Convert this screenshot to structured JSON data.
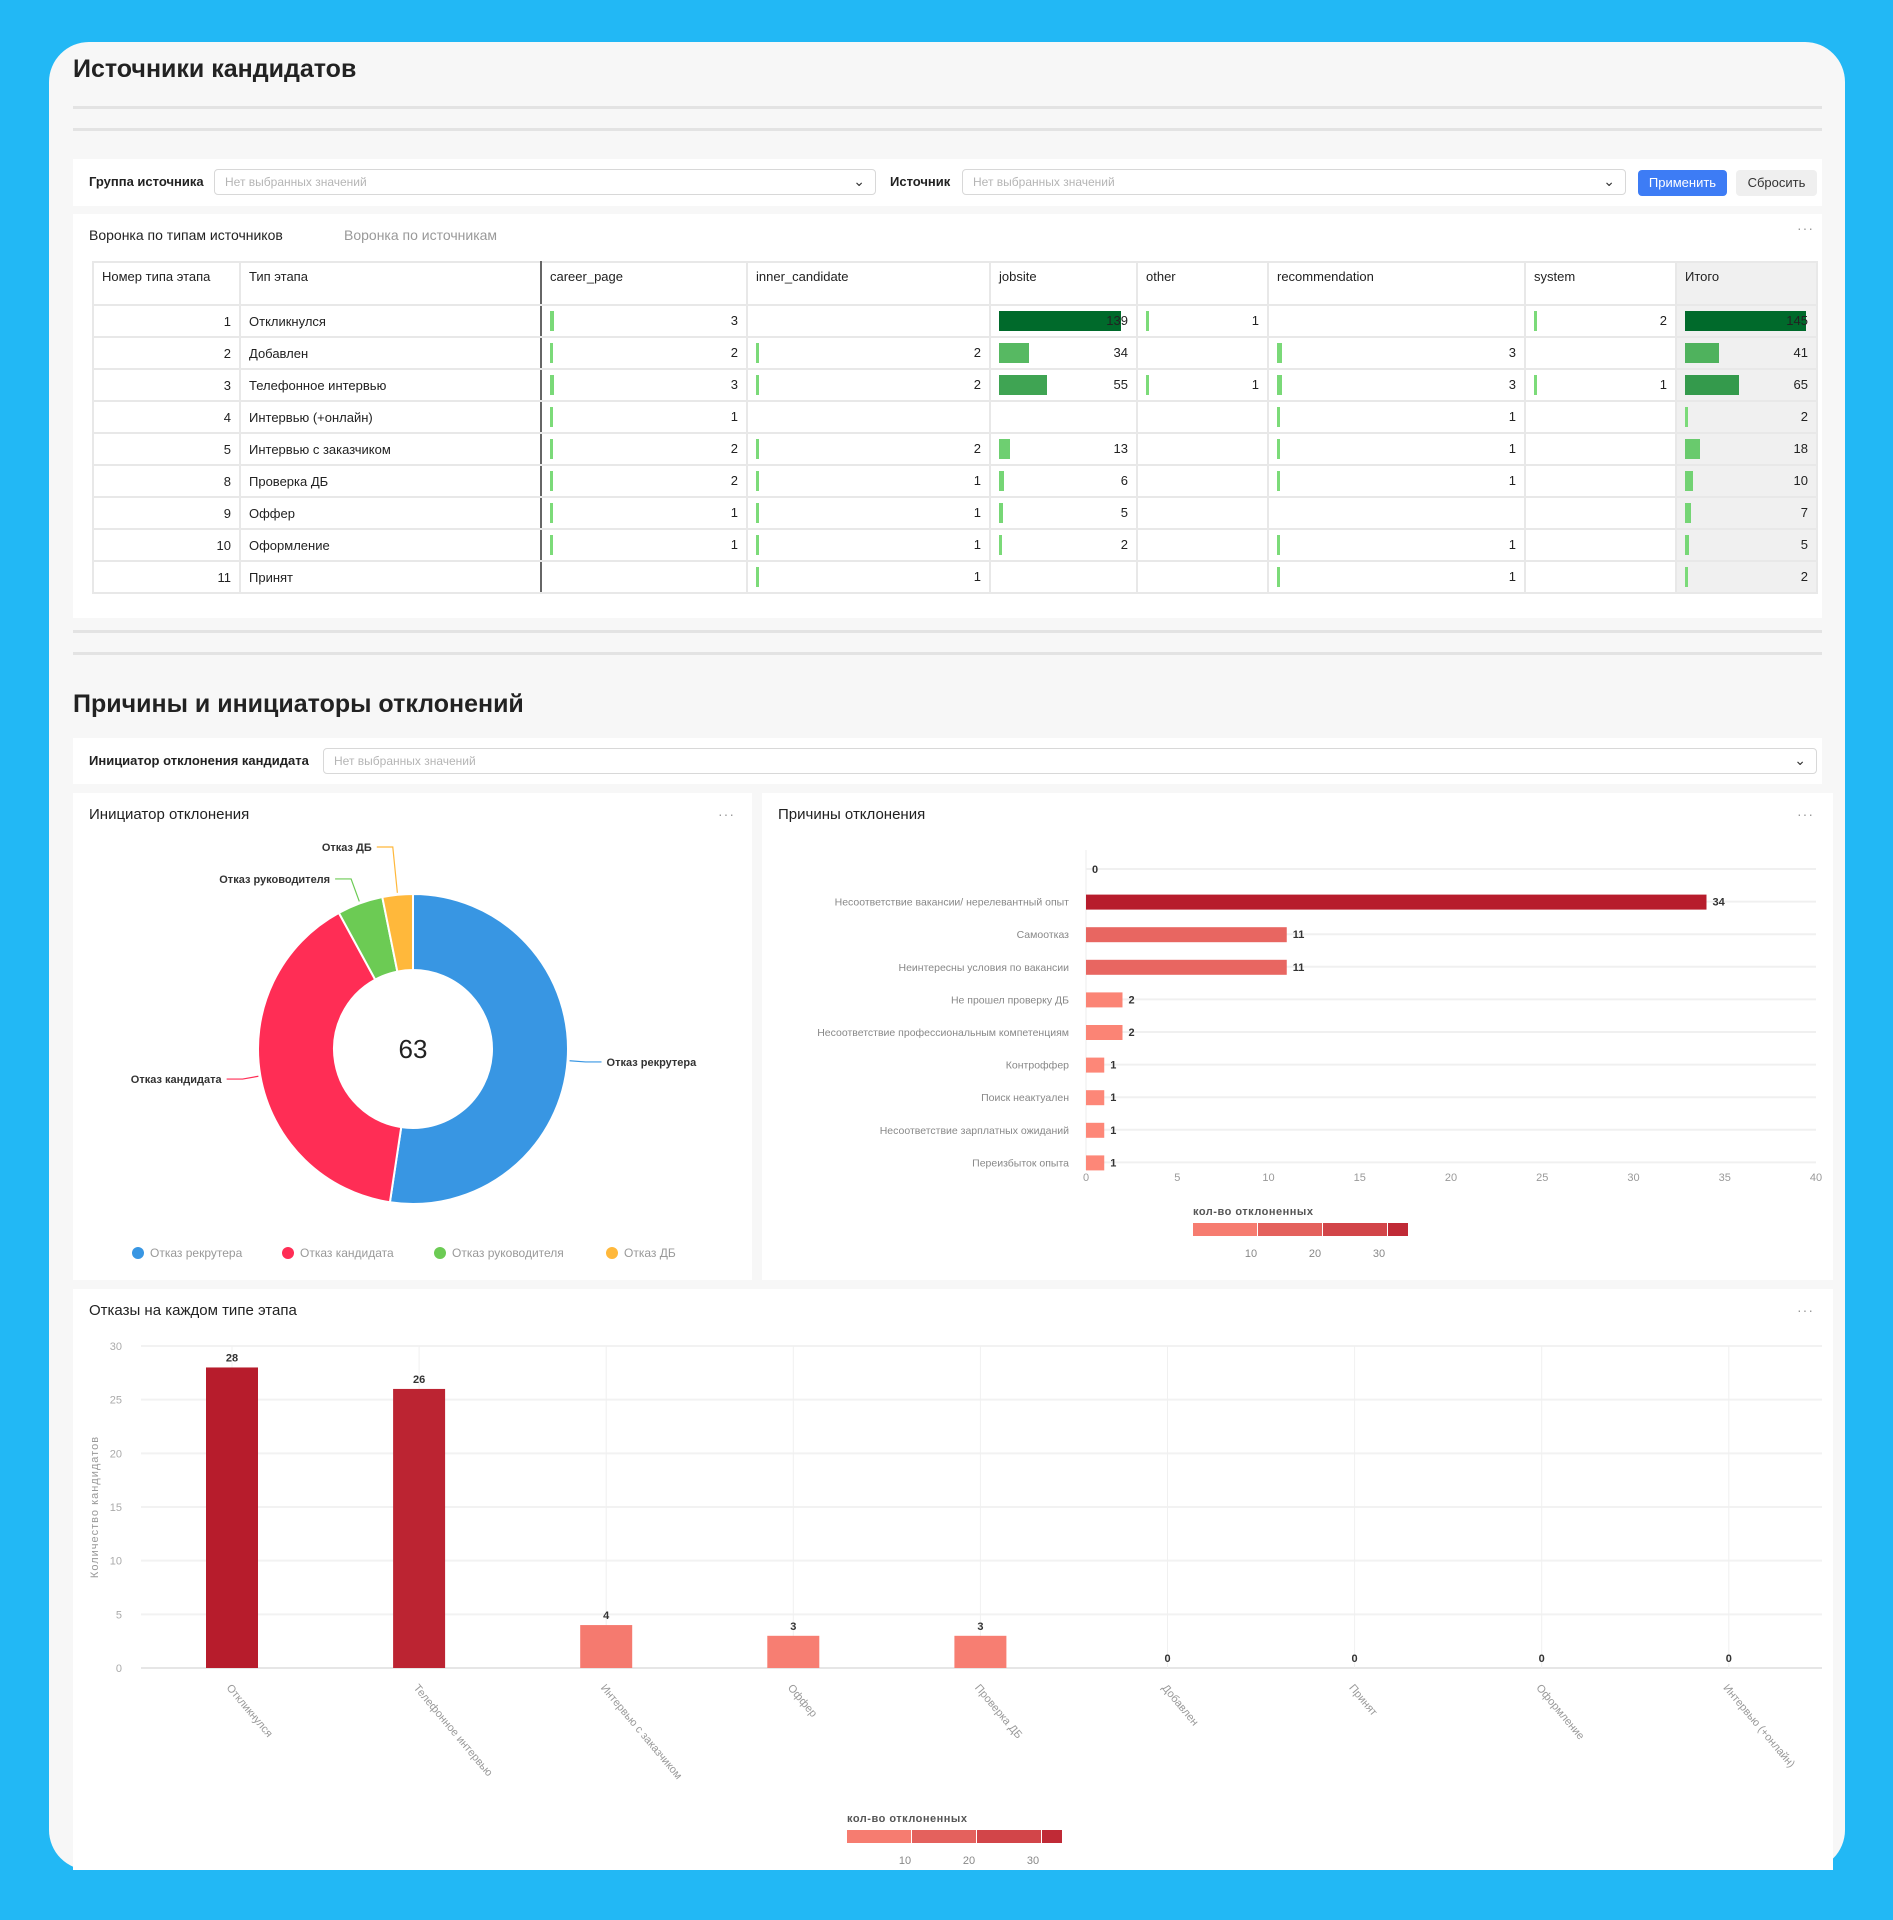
{
  "section1": {
    "title": "Источники кандидатов",
    "filters": {
      "group_label": "Группа источника",
      "group_placeholder": "Нет выбранных значений",
      "source_label": "Источник",
      "source_placeholder": "Нет выбранных значений",
      "apply_label": "Применить",
      "reset_label": "Сбросить"
    },
    "tabs": [
      {
        "label": "Воронка по типам источников",
        "active": true
      },
      {
        "label": "Воронка по источникам",
        "active": false
      }
    ],
    "menu_label": "···"
  },
  "funnel_table": {
    "columns": [
      "Номер типа этапа",
      "Тип этапа",
      "career_page",
      "inner_candidate",
      "jobsite",
      "other",
      "recommendation",
      "system",
      "Итого"
    ],
    "max_value": 145,
    "rows": [
      {
        "num": "1",
        "stage": "Откликнулся",
        "values": [
          3,
          null,
          139,
          1,
          null,
          2,
          145
        ]
      },
      {
        "num": "2",
        "stage": "Добавлен",
        "values": [
          2,
          2,
          34,
          null,
          3,
          null,
          41
        ]
      },
      {
        "num": "3",
        "stage": "Телефонное интервью",
        "values": [
          3,
          2,
          55,
          1,
          3,
          1,
          65
        ]
      },
      {
        "num": "4",
        "stage": "Интервью (+онлайн)",
        "values": [
          1,
          null,
          null,
          null,
          1,
          null,
          2
        ]
      },
      {
        "num": "5",
        "stage": "Интервью с заказчиком",
        "values": [
          2,
          2,
          13,
          null,
          1,
          null,
          18
        ]
      },
      {
        "num": "8",
        "stage": "Проверка ДБ",
        "values": [
          2,
          1,
          6,
          null,
          1,
          null,
          10
        ]
      },
      {
        "num": "9",
        "stage": "Оффер",
        "values": [
          1,
          1,
          5,
          null,
          null,
          null,
          7
        ]
      },
      {
        "num": "10",
        "stage": "Оформление",
        "values": [
          1,
          1,
          2,
          null,
          1,
          null,
          5
        ]
      },
      {
        "num": "11",
        "stage": "Принят",
        "values": [
          null,
          1,
          null,
          null,
          1,
          null,
          2
        ]
      }
    ],
    "bar_colors": {
      "low": "#7ddc7a",
      "high": "#006a2b"
    }
  },
  "section2": {
    "title": "Причины и инициаторы отклонений",
    "filter_label": "Инициатор отклонения кандидата",
    "filter_placeholder": "Нет выбранных значений",
    "menu_label": "···"
  },
  "chart_data": [
    {
      "type": "pie",
      "title": "Инициатор отклонения",
      "total_label": "63",
      "slices": [
        {
          "name": "Отказ рекрутера",
          "value": 33,
          "color": "#3896e3"
        },
        {
          "name": "Отказ кандидата",
          "value": 25,
          "color": "#ff2d55"
        },
        {
          "name": "Отказ руководителя",
          "value": 3,
          "color": "#6ccb54"
        },
        {
          "name": "Отказ ДБ",
          "value": 2,
          "color": "#ffb83b"
        }
      ],
      "legend": "bottom"
    },
    {
      "type": "bar",
      "orientation": "horizontal",
      "title": "Причины отклонения",
      "categories": [
        "",
        "Несоответствие вакансии/ нерелевантный опыт",
        "Самоотказ",
        "Неинтересны условия по вакансии",
        "Не прошел проверку ДБ",
        "Несоответствие профессиональным компетенциям",
        "Контроффер",
        "Поиск неактуален",
        "Несоответствие зарплатных ожиданий",
        "Переизбыток опыта"
      ],
      "values": [
        0,
        34,
        11,
        11,
        2,
        2,
        1,
        1,
        1,
        1
      ],
      "xlim": [
        0,
        40
      ],
      "xticks": [
        "0",
        "5",
        "10",
        "15",
        "20",
        "25",
        "30",
        "35",
        "40"
      ],
      "color_legend": {
        "title": "кол-во отклоненных",
        "ticks": [
          "10",
          "20",
          "30"
        ]
      },
      "colors": {
        "low": "#ff8a7a",
        "high": "#b71c2c"
      }
    },
    {
      "type": "bar",
      "title": "Отказы на каждом типе этапа",
      "categories": [
        "Откликнулся",
        "Телефонное интервью",
        "Интервью с заказчиком",
        "Оффер",
        "Проверка ДБ",
        "Добавлен",
        "Принят",
        "Оформление",
        "Интервью (+онлайн)"
      ],
      "values": [
        28,
        26,
        4,
        3,
        3,
        0,
        0,
        0,
        0
      ],
      "ylabel": "Количество кандидатов",
      "ylim": [
        0,
        30
      ],
      "yticks": [
        "0",
        "5",
        "10",
        "15",
        "20",
        "25",
        "30"
      ],
      "color_legend": {
        "title": "кол-во отклоненных",
        "ticks": [
          "10",
          "20",
          "30"
        ]
      },
      "colors": {
        "low": "#ff8a7a",
        "high": "#b71c2c"
      }
    }
  ]
}
